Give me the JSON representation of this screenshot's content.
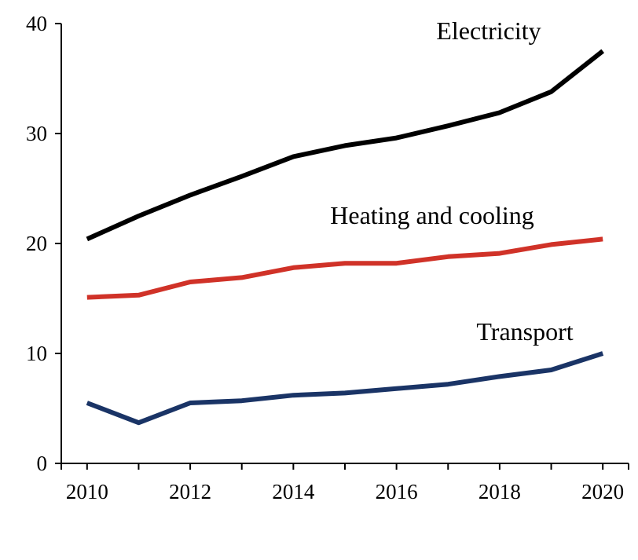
{
  "chart_data": {
    "type": "line",
    "title": "",
    "xlabel": "",
    "ylabel": "",
    "x": [
      2010,
      2011,
      2012,
      2013,
      2014,
      2015,
      2016,
      2017,
      2018,
      2019,
      2020
    ],
    "xlim": [
      2009.5,
      2020.5
    ],
    "ylim": [
      0,
      40
    ],
    "yticks": [
      0,
      10,
      20,
      30,
      40
    ],
    "xtick_labels": [
      "2010",
      "2012",
      "2014",
      "2016",
      "2018",
      "2020"
    ],
    "xtick_label_years": [
      2010,
      2012,
      2014,
      2016,
      2018,
      2020
    ],
    "grid": false,
    "legend": "none (direct labels)",
    "series": [
      {
        "name": "Electricity",
        "color": "#000000",
        "values": [
          20.4,
          22.5,
          24.4,
          26.1,
          27.9,
          28.9,
          29.6,
          30.7,
          31.9,
          33.8,
          37.5
        ]
      },
      {
        "name": "Heating and cooling",
        "color": "#d03228",
        "values": [
          15.1,
          15.3,
          16.5,
          16.9,
          17.8,
          18.2,
          18.2,
          18.8,
          19.1,
          19.9,
          20.4
        ]
      },
      {
        "name": "Transport",
        "color": "#1a3466",
        "values": [
          5.5,
          3.7,
          5.5,
          5.7,
          6.2,
          6.4,
          6.8,
          7.2,
          7.9,
          8.5,
          10.0
        ]
      }
    ]
  }
}
